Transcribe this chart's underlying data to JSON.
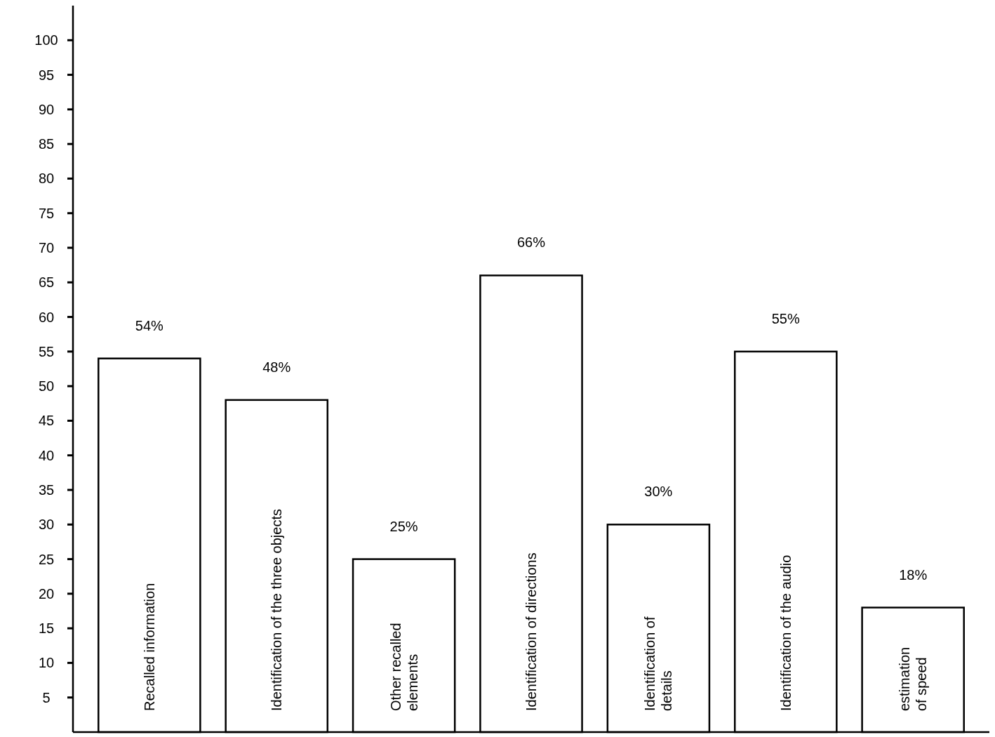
{
  "chart_data": {
    "type": "bar",
    "categories": [
      "Recalled information",
      "Identification of the three objects",
      "Other recalled elements",
      "Identification of directions",
      "Identification of details",
      "Identification of the audio",
      "estimation of speed"
    ],
    "values": [
      54,
      48,
      25,
      66,
      30,
      55,
      18
    ],
    "value_labels": [
      "54%",
      "48%",
      "25%",
      "66%",
      "30%",
      "55%",
      "18%"
    ],
    "color": "#ffffff",
    "ylim": [
      0,
      105
    ],
    "yticks": [
      5,
      10,
      15,
      20,
      25,
      30,
      35,
      40,
      45,
      50,
      55,
      60,
      65,
      70,
      75,
      80,
      85,
      90,
      95,
      100
    ],
    "grid": false
  }
}
